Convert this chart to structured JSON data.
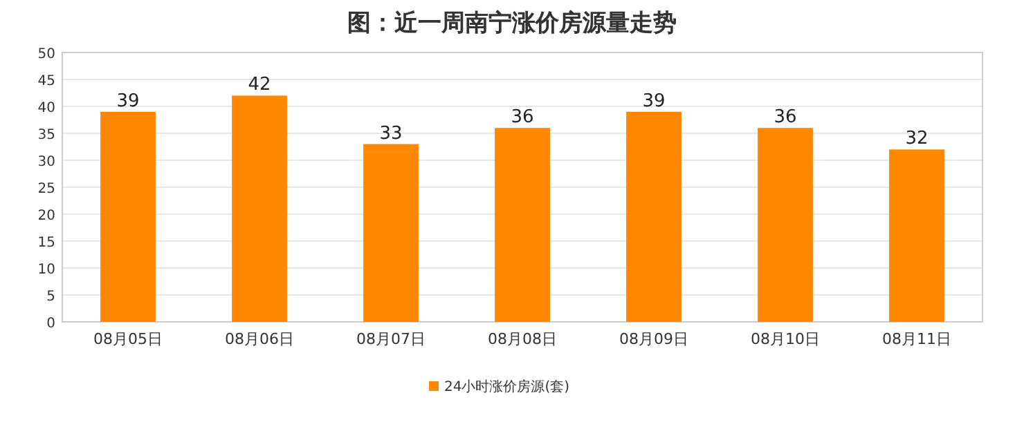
{
  "chart_data": {
    "type": "bar",
    "title": "图：近一周南宁涨价房源量走势",
    "categories": [
      "08月05日",
      "08月06日",
      "08月07日",
      "08月08日",
      "08月09日",
      "08月10日",
      "08月11日"
    ],
    "series": [
      {
        "name": "24小时涨价房源(套)",
        "color": "#ff8800",
        "values": [
          39,
          42,
          33,
          36,
          39,
          36,
          32
        ]
      }
    ],
    "ylim": [
      0,
      50
    ],
    "yticks": [
      0,
      5,
      10,
      15,
      20,
      25,
      30,
      35,
      40,
      45,
      50
    ],
    "grid": "y",
    "legend": "bottom",
    "data_labels": true
  }
}
